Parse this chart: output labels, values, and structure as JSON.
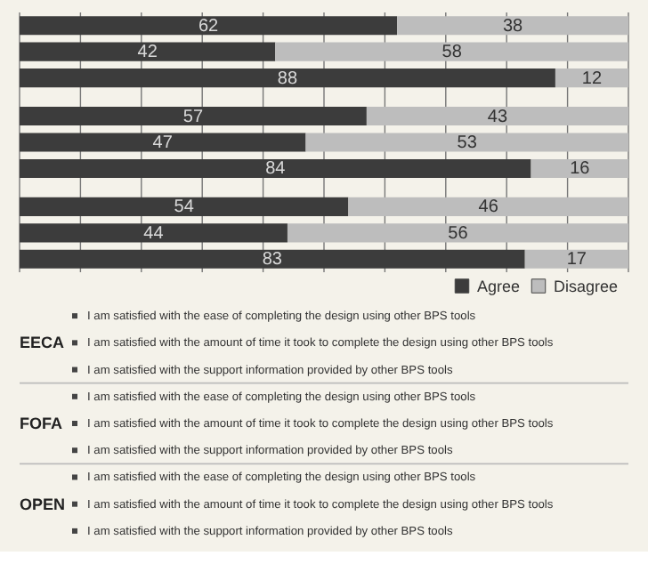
{
  "chart_data": {
    "type": "bar",
    "orientation": "horizontal",
    "stacked": true,
    "categories": [
      null,
      null,
      null,
      null,
      null,
      null,
      null,
      null,
      null
    ],
    "series": [
      {
        "name": "Agree",
        "color": "#3c3c3c",
        "values": [
          62,
          42,
          88,
          57,
          47,
          84,
          54,
          44,
          83
        ]
      },
      {
        "name": "Disagree",
        "color": "#bdbdbd",
        "values": [
          38,
          58,
          12,
          43,
          53,
          16,
          46,
          56,
          17
        ]
      }
    ],
    "data_labels": true,
    "xlim": [
      0,
      100
    ],
    "xticks": [
      {
        "value": 0,
        "label": null
      },
      {
        "value": 10,
        "label": null
      },
      {
        "value": 20,
        "label": null
      },
      {
        "value": 30,
        "label": null
      },
      {
        "value": 40,
        "label": null
      },
      {
        "value": 50,
        "label": null
      },
      {
        "value": 60,
        "label": null
      },
      {
        "value": 70,
        "label": null
      },
      {
        "value": 80,
        "label": null
      },
      {
        "value": 90,
        "label": null
      },
      {
        "value": 100,
        "label": null
      }
    ],
    "tick_labels": false,
    "grid": "x",
    "legend": "bottom right",
    "annotations": [
      "EECA",
      "I am satisfied with the ease of completing the design using other BPS tools",
      "I am satisfied with the amount of time it took to complete the design using other BPS tools",
      "I am satisfied with the support information provided by other BPS tools",
      "FOFA",
      "I am satisfied with the ease of completing the design using other BPS tools",
      "I am satisfied with the amount of time it took to complete the design using other BPS tools",
      "I am satisfied with the support information provided by other BPS tools",
      "OPEN",
      "I am satisfied with the ease of completing the design using other BPS tools",
      "I am satisfied with the amount of time it took to complete the design using other BPS tools",
      "I am satisfied with the support information provided by other BPS tools"
    ]
  }
}
